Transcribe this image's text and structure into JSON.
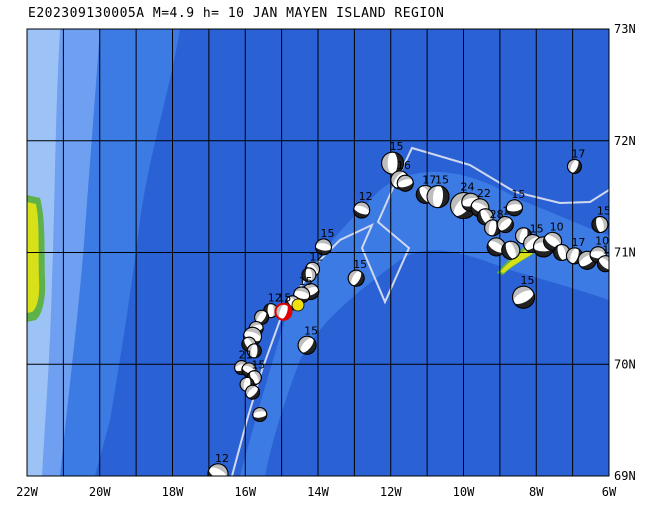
{
  "title": "E202309130005A M=4.9 h= 10 JAN MAYEN ISLAND REGION",
  "map": {
    "lon_range": [
      -22,
      -6
    ],
    "lat_range": [
      69,
      73
    ],
    "colors": {
      "ocean_deep": "#2a62d6",
      "ocean_mid": "#3c7ae4",
      "ocean_shallow": "#6f9ff0",
      "ocean_shelf": "#9dc3f6",
      "land": "#d8e018",
      "land_coast": "#5fb24a",
      "grid": "#000000",
      "ridge": "#d0d8f0",
      "target": "#e00000",
      "highlight": "#f0e010"
    },
    "x_ticks": [
      {
        "value": -22,
        "label": "22W"
      },
      {
        "value": -20,
        "label": "20W"
      },
      {
        "value": -18,
        "label": "18W"
      },
      {
        "value": -16,
        "label": "16W"
      },
      {
        "value": -14,
        "label": "14W"
      },
      {
        "value": -12,
        "label": "12W"
      },
      {
        "value": -10,
        "label": "10W"
      },
      {
        "value": -8,
        "label": "8W"
      },
      {
        "value": -6,
        "label": "6W"
      }
    ],
    "y_ticks": [
      {
        "value": 73,
        "label": "73N"
      },
      {
        "value": 72,
        "label": "72N"
      },
      {
        "value": 71,
        "label": "71N"
      },
      {
        "value": 70,
        "label": "70N"
      },
      {
        "value": 69,
        "label": "69N"
      }
    ]
  },
  "events": [
    {
      "lon": -11.95,
      "lat": 71.8,
      "label": "15",
      "size": 11
    },
    {
      "lon": -11.75,
      "lat": 71.65,
      "label": "16",
      "size": 9
    },
    {
      "lon": -11.6,
      "lat": 71.62,
      "label": "",
      "size": 8
    },
    {
      "lon": -12.8,
      "lat": 71.38,
      "label": "12",
      "size": 8
    },
    {
      "lon": -11.05,
      "lat": 71.52,
      "label": "17",
      "size": 9
    },
    {
      "lon": -10.7,
      "lat": 71.5,
      "label": "15",
      "size": 11
    },
    {
      "lon": -10.0,
      "lat": 71.42,
      "label": "24",
      "size": 13
    },
    {
      "lon": -9.8,
      "lat": 71.45,
      "label": "",
      "size": 9
    },
    {
      "lon": -9.55,
      "lat": 71.4,
      "label": "22",
      "size": 9
    },
    {
      "lon": -9.4,
      "lat": 71.32,
      "label": "",
      "size": 8
    },
    {
      "lon": -9.2,
      "lat": 71.22,
      "label": "28",
      "size": 8
    },
    {
      "lon": -8.85,
      "lat": 71.25,
      "label": "15",
      "size": 8
    },
    {
      "lon": -8.6,
      "lat": 71.4,
      "label": "15",
      "size": 8
    },
    {
      "lon": -9.1,
      "lat": 71.05,
      "label": "",
      "size": 9
    },
    {
      "lon": -8.7,
      "lat": 71.02,
      "label": "",
      "size": 9
    },
    {
      "lon": -8.35,
      "lat": 71.15,
      "label": "",
      "size": 8
    },
    {
      "lon": -8.1,
      "lat": 71.08,
      "label": "15",
      "size": 9
    },
    {
      "lon": -7.8,
      "lat": 71.05,
      "label": "",
      "size": 10
    },
    {
      "lon": -7.55,
      "lat": 71.1,
      "label": "10",
      "size": 9
    },
    {
      "lon": -7.3,
      "lat": 71.0,
      "label": "",
      "size": 8
    },
    {
      "lon": -6.95,
      "lat": 70.97,
      "label": "17",
      "size": 8
    },
    {
      "lon": -6.6,
      "lat": 70.93,
      "label": "",
      "size": 9
    },
    {
      "lon": -6.3,
      "lat": 70.98,
      "label": "10",
      "size": 8
    },
    {
      "lon": -6.1,
      "lat": 70.9,
      "label": "15",
      "size": 8
    },
    {
      "lon": -6.25,
      "lat": 71.25,
      "label": "15",
      "size": 8
    },
    {
      "lon": -6.95,
      "lat": 71.77,
      "label": "17",
      "size": 7
    },
    {
      "lon": -8.35,
      "lat": 70.6,
      "label": "15",
      "size": 11
    },
    {
      "lon": -13.85,
      "lat": 71.05,
      "label": "15",
      "size": 8
    },
    {
      "lon": -14.15,
      "lat": 70.85,
      "label": "12",
      "size": 7
    },
    {
      "lon": -14.25,
      "lat": 70.8,
      "label": "",
      "size": 7
    },
    {
      "lon": -12.95,
      "lat": 70.77,
      "label": "15",
      "size": 8
    },
    {
      "lon": -14.2,
      "lat": 70.65,
      "label": "",
      "size": 8
    },
    {
      "lon": -14.45,
      "lat": 70.62,
      "label": "15",
      "size": 8
    },
    {
      "lon": -14.7,
      "lat": 70.55,
      "label": "",
      "size": 7
    },
    {
      "lon": -15.3,
      "lat": 70.48,
      "label": "12",
      "size": 7
    },
    {
      "lon": -15.55,
      "lat": 70.42,
      "label": "",
      "size": 7
    },
    {
      "lon": -15.7,
      "lat": 70.32,
      "label": "",
      "size": 7
    },
    {
      "lon": -15.8,
      "lat": 70.25,
      "label": "",
      "size": 9
    },
    {
      "lon": -15.9,
      "lat": 70.18,
      "label": "",
      "size": 7
    },
    {
      "lon": -15.75,
      "lat": 70.12,
      "label": "",
      "size": 7
    },
    {
      "lon": -14.3,
      "lat": 70.17,
      "label": "15",
      "size": 9
    },
    {
      "lon": -16.1,
      "lat": 69.97,
      "label": "21",
      "size": 7
    },
    {
      "lon": -15.9,
      "lat": 69.95,
      "label": "",
      "size": 7
    },
    {
      "lon": -15.75,
      "lat": 69.88,
      "label": "15",
      "size": 7
    },
    {
      "lon": -15.95,
      "lat": 69.82,
      "label": "",
      "size": 7
    },
    {
      "lon": -15.8,
      "lat": 69.75,
      "label": "",
      "size": 7
    },
    {
      "lon": -15.6,
      "lat": 69.55,
      "label": "",
      "size": 7
    },
    {
      "lon": -16.75,
      "lat": 69.02,
      "label": "12",
      "size": 10
    }
  ],
  "target_event": {
    "lon": -14.95,
    "lat": 70.47,
    "label": "15"
  },
  "highlight_event": {
    "lon": -14.55,
    "lat": 70.53
  }
}
